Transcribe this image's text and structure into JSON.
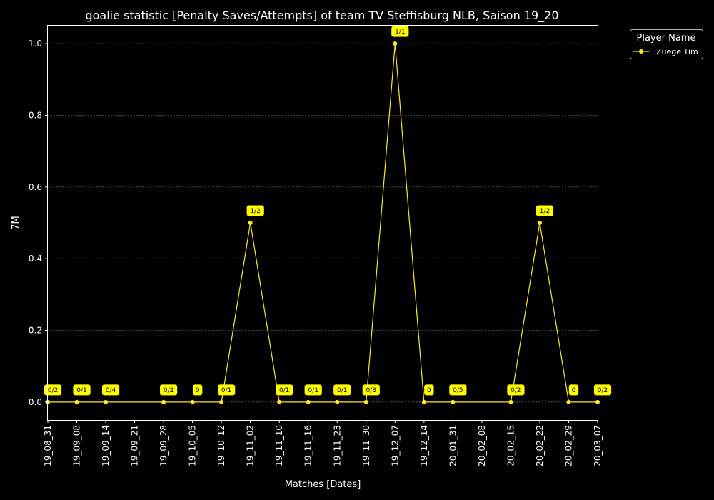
{
  "chart_data": {
    "type": "line",
    "title": "goalie statistic [Penalty Saves/Attempts] of team TV Steffisburg NLB, Saison 19_20",
    "xlabel": "Matches [Dates]",
    "ylabel": "7M",
    "ylim": [
      -0.05,
      1.05
    ],
    "yticks": [
      0.0,
      0.2,
      0.4,
      0.6,
      0.8,
      1.0
    ],
    "ytick_labels": [
      "0.0",
      "0.2",
      "0.4",
      "0.6",
      "0.8",
      "1.0"
    ],
    "grid": "horizontal dotted",
    "legend_placement": "outside top-right",
    "legend_title": "Player Name",
    "categories": [
      "19_08_31",
      "19_09_08",
      "19_09_14",
      "19_09_21",
      "19_09_28",
      "19_10_05",
      "19_10_12",
      "19_11_02",
      "19_11_10",
      "19_11_16",
      "19_11_23",
      "19_11_30",
      "19_12_07",
      "19_12_14",
      "20_01_31",
      "20_02_08",
      "20_02_15",
      "20_02_22",
      "20_02_29",
      "20_03_07"
    ],
    "series": [
      {
        "name": "Zuege Tim",
        "color": "#ffe81f",
        "values": [
          0,
          0,
          0,
          null,
          0,
          0,
          0,
          0.5,
          0,
          0,
          0,
          0,
          1.0,
          0,
          0,
          null,
          0,
          0.5,
          0,
          0
        ],
        "labels": [
          "0/2",
          "0/1",
          "0/4",
          null,
          "0/2",
          "0",
          "0/1",
          "1/2",
          "0/1",
          "0/1",
          "0/1",
          "0/3",
          "1/1",
          "0",
          "0/5",
          null,
          "0/2",
          "1/2",
          "0",
          "0/2"
        ]
      }
    ],
    "colors": {
      "background": "#000000",
      "foreground": "#ffffff",
      "grid": "#6e6e6e",
      "label_box": "#ffff00"
    }
  }
}
